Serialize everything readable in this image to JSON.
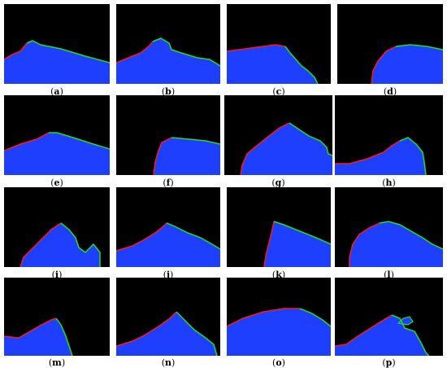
{
  "panels": [
    {
      "id": "a",
      "label": "(a)",
      "bold": "a"
    },
    {
      "id": "b",
      "label": "(b)",
      "bold": "b"
    },
    {
      "id": "c",
      "label": "(c)",
      "bold": "c"
    },
    {
      "id": "d",
      "label": "(d)",
      "bold": "d"
    },
    {
      "id": "e",
      "label": "(e)",
      "bold": "e"
    },
    {
      "id": "f",
      "label": "(f)",
      "bold": "f"
    },
    {
      "id": "g",
      "label": "(g)",
      "bold": "g"
    },
    {
      "id": "h",
      "label": "(h)",
      "bold": "h"
    },
    {
      "id": "i",
      "label": "(i)",
      "bold": "i"
    },
    {
      "id": "j",
      "label": "(j)",
      "bold": "j"
    },
    {
      "id": "k",
      "label": "(k)",
      "bold": "k"
    },
    {
      "id": "l",
      "label": "(l)",
      "bold": "l"
    },
    {
      "id": "m",
      "label": "(m)",
      "bold": "m"
    },
    {
      "id": "n",
      "label": "(n)",
      "bold": "n"
    },
    {
      "id": "o",
      "label": "(o)",
      "bold": "o"
    },
    {
      "id": "p",
      "label": "(p)",
      "bold": "p"
    }
  ],
  "colors": {
    "background": "#000000",
    "region": "#1f3fff",
    "edge_red": "#ff1a1a",
    "edge_green": "#22dd22"
  }
}
